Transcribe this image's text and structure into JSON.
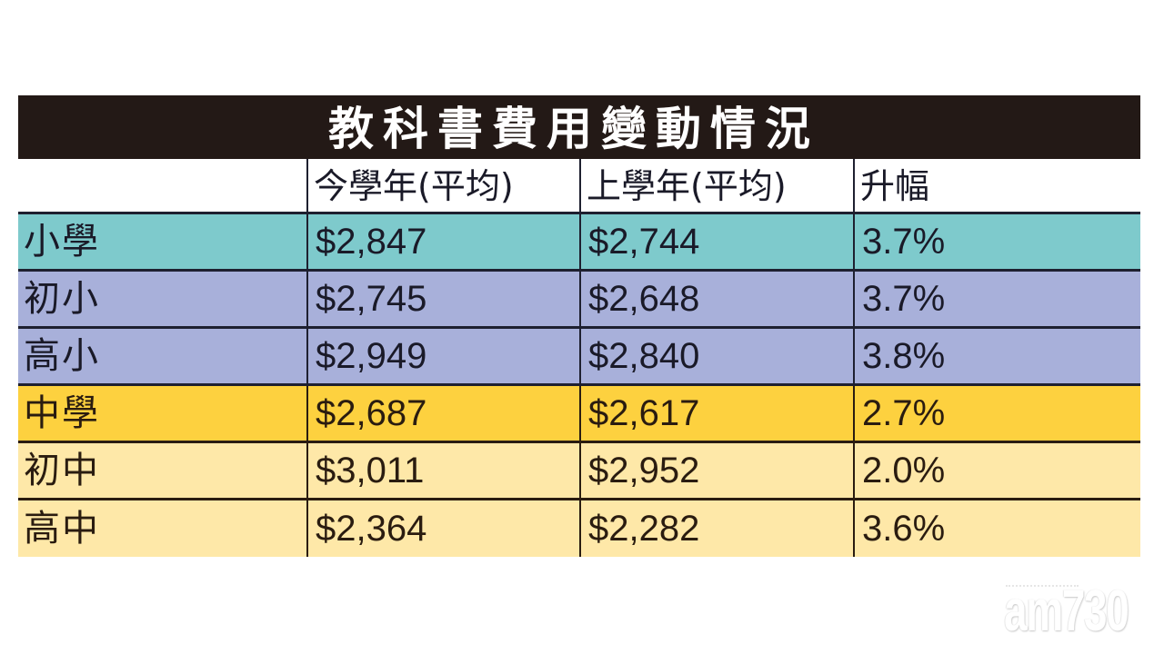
{
  "title": "教科書費用變動情況",
  "table": {
    "headers": [
      "",
      "今學年(平均)",
      "上學年(平均)",
      "升幅"
    ],
    "rows": [
      {
        "label": "小學",
        "current": "$2,847",
        "previous": "$2,744",
        "increase": "3.7%",
        "color": "#7ecacc"
      },
      {
        "label": "初小",
        "current": "$2,745",
        "previous": "$2,648",
        "increase": "3.7%",
        "color": "#a8b0da"
      },
      {
        "label": "高小",
        "current": "$2,949",
        "previous": "$2,840",
        "increase": "3.8%",
        "color": "#a8b0da"
      },
      {
        "label": "中學",
        "current": "$2,687",
        "previous": "$2,617",
        "increase": "2.7%",
        "color": "#fdd13f"
      },
      {
        "label": "初中",
        "current": "$3,011",
        "previous": "$2,952",
        "increase": "2.0%",
        "color": "#fee8a8"
      },
      {
        "label": "高中",
        "current": "$2,364",
        "previous": "$2,282",
        "increase": "3.6%",
        "color": "#fee8a8"
      }
    ]
  },
  "colors": {
    "title_bg": "#231916",
    "primary": "#7ecacc",
    "primary_sub": "#a8b0da",
    "secondary": "#fdd13f",
    "secondary_sub": "#fee8a8"
  },
  "watermark": {
    "text": "am730"
  }
}
